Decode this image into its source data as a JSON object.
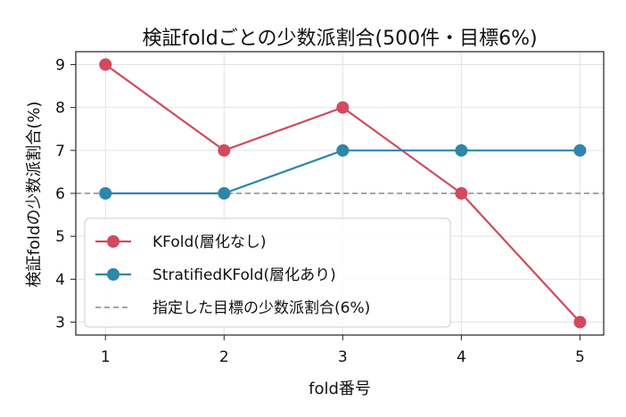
{
  "chart_data": {
    "type": "line",
    "title": "検証foldごとの少数派割合(500件・目標6%)",
    "xlabel": "fold番号",
    "ylabel": "検証foldの少数派割合(%)",
    "x": [
      1,
      2,
      3,
      4,
      5
    ],
    "x_ticks": [
      "1",
      "2",
      "3",
      "4",
      "5"
    ],
    "xlim": [
      0.75,
      5.2
    ],
    "y_ticks": [
      "3",
      "4",
      "5",
      "6",
      "7",
      "8",
      "9"
    ],
    "ylim": [
      2.7,
      9.3
    ],
    "grid": true,
    "legend_position": "lower-left",
    "series": [
      {
        "name": "KFold(層化なし)",
        "values": [
          9,
          7,
          8,
          6,
          3
        ],
        "color": "#d14a5f",
        "style": "solid-marker"
      },
      {
        "name": "StratifiedKFold(層化あり)",
        "values": [
          6,
          6,
          7,
          7,
          7
        ],
        "color": "#2e86a8",
        "style": "solid-marker"
      }
    ],
    "reference_line": {
      "name": "指定した目標の少数派割合(6%)",
      "value": 6,
      "color": "#888888",
      "style": "dashed"
    }
  }
}
